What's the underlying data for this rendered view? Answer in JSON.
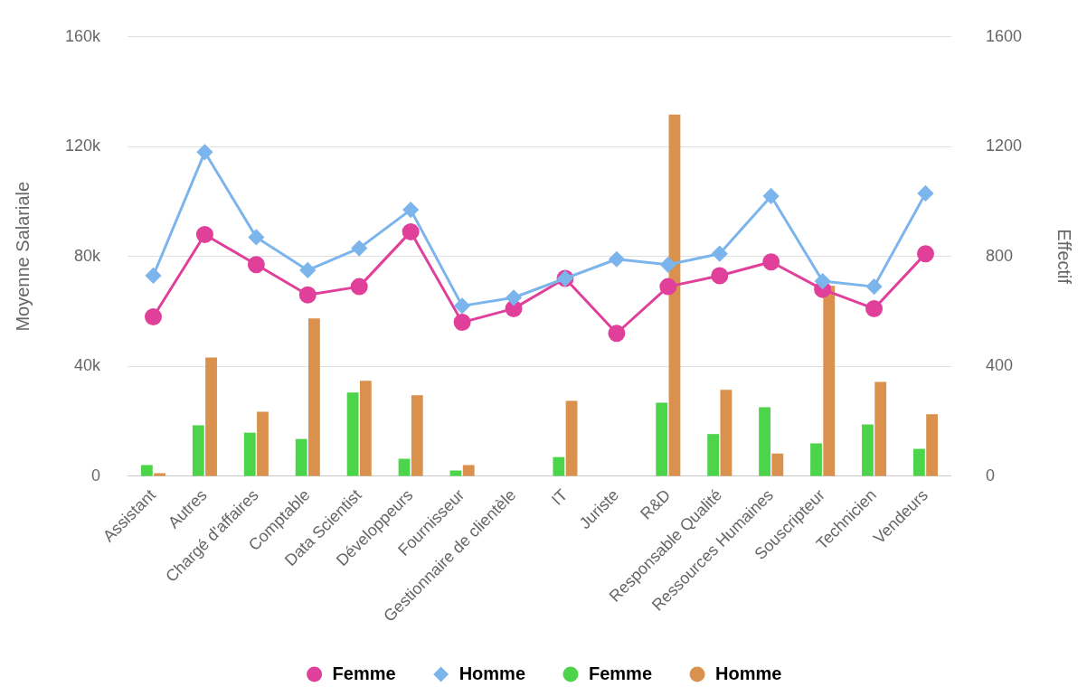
{
  "chart_data": {
    "type": "bar",
    "ylabel": "Moyenne Salariale",
    "y2label": "Effectif",
    "categories": [
      "Assistant",
      "Autres",
      "Chargé d'affaires",
      "Comptable",
      "Data Scientist",
      "Développeurs",
      "Fournisseur",
      "Gestionnaire de clientèle",
      "IT",
      "Juriste",
      "R&D",
      "Responsable Qualité",
      "Ressources Humaines",
      "Souscripteur",
      "Technicien",
      "Vendeurs"
    ],
    "series": [
      {
        "name": "Femme",
        "type": "line",
        "marker": "circle",
        "color": "#e0409a",
        "values": [
          58000,
          88000,
          77000,
          66000,
          69000,
          89000,
          56000,
          61000,
          72000,
          52000,
          69000,
          73000,
          78000,
          68000,
          61000,
          81000
        ]
      },
      {
        "name": "Homme",
        "type": "line",
        "marker": "diamond",
        "color": "#7cb5ec",
        "values": [
          73000,
          118000,
          87000,
          75000,
          83000,
          97000,
          62000,
          65000,
          72000,
          79000,
          77000,
          81000,
          102000,
          71000,
          69000,
          103000
        ]
      },
      {
        "name": "Femme",
        "axis": "y2",
        "color": "#4cd44a",
        "values": [
          40,
          185,
          158,
          135,
          304,
          63,
          20,
          null,
          69,
          null,
          267,
          153,
          251,
          119,
          188,
          99
        ]
      },
      {
        "name": "Homme",
        "axis": "y2",
        "color": "#d9914d",
        "values": [
          10,
          432,
          234,
          574,
          347,
          294,
          40,
          null,
          274,
          null,
          1317,
          314,
          82,
          693,
          343,
          225
        ]
      }
    ],
    "ylim": [
      0,
      160000
    ],
    "yticks": [
      {
        "value": 0,
        "label": "0"
      },
      {
        "value": 40000,
        "label": "40k"
      },
      {
        "value": 80000,
        "label": "80k"
      },
      {
        "value": 120000,
        "label": "120k"
      },
      {
        "value": 160000,
        "label": "160k"
      }
    ],
    "y2lim": [
      0,
      1600
    ],
    "y2ticks": [
      0,
      400,
      800,
      1200,
      1600
    ],
    "grid": "y",
    "legend": "bottom"
  }
}
